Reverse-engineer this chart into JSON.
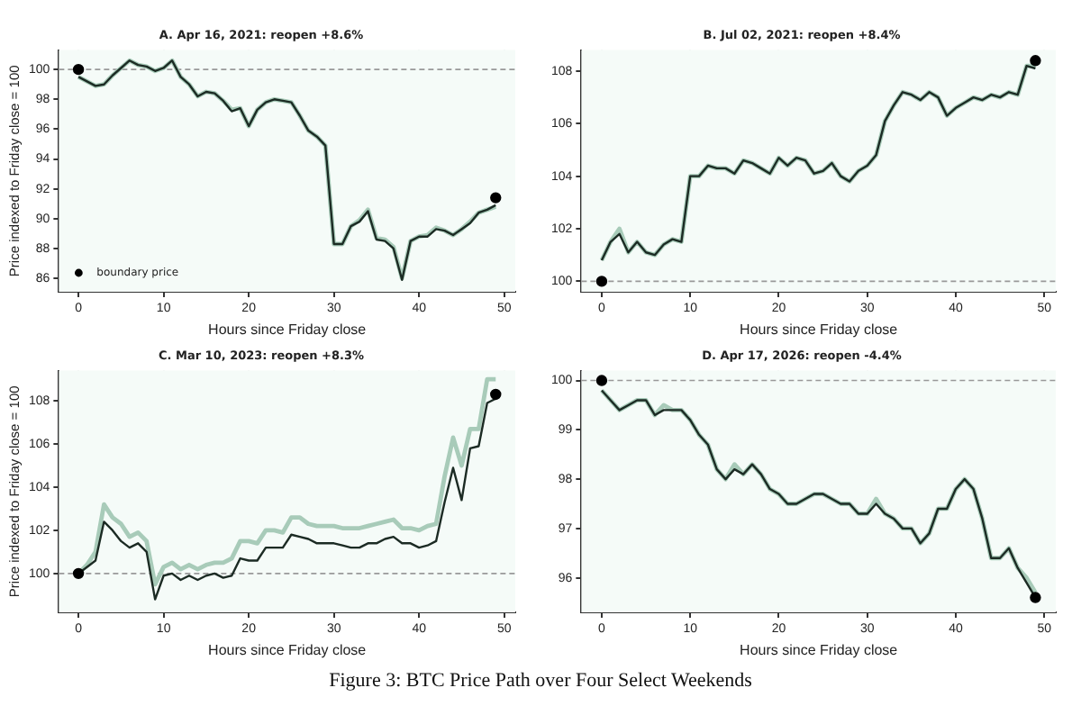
{
  "chart_data": [
    {
      "type": "line",
      "title": "A. Apr 16, 2021: reopen +8.6%",
      "xlabel": "Hours since Friday close",
      "ylabel": "Price indexed to Friday close = 100",
      "x": [
        0,
        1,
        2,
        3,
        4,
        5,
        6,
        7,
        8,
        9,
        10,
        11,
        12,
        13,
        14,
        15,
        16,
        17,
        18,
        19,
        20,
        21,
        22,
        23,
        24,
        25,
        26,
        27,
        28,
        29,
        30,
        31,
        32,
        33,
        34,
        35,
        36,
        37,
        38,
        39,
        40,
        41,
        42,
        43,
        44,
        45,
        46,
        47,
        48,
        49
      ],
      "series": [
        {
          "color": "#a8cbb9",
          "values": [
            99.5,
            99.2,
            98.9,
            99.0,
            99.6,
            100.1,
            100.6,
            100.3,
            100.2,
            99.9,
            100.1,
            100.6,
            99.5,
            99.0,
            98.2,
            98.5,
            98.4,
            97.9,
            97.3,
            97.4,
            96.2,
            97.3,
            97.8,
            98.0,
            97.9,
            97.8,
            96.9,
            95.9,
            95.5,
            94.9,
            88.3,
            88.3,
            89.5,
            89.9,
            90.6,
            88.7,
            88.6,
            88.1,
            86.0,
            88.5,
            88.8,
            88.9,
            89.4,
            89.2,
            88.9,
            89.3,
            89.8,
            90.4,
            90.6,
            90.8
          ]
        },
        {
          "color": "#1c2b24",
          "values": [
            99.5,
            99.2,
            98.9,
            99.0,
            99.6,
            100.1,
            100.6,
            100.3,
            100.2,
            99.9,
            100.1,
            100.6,
            99.5,
            99.0,
            98.2,
            98.5,
            98.4,
            97.9,
            97.2,
            97.4,
            96.2,
            97.3,
            97.8,
            98.0,
            97.9,
            97.8,
            96.9,
            95.9,
            95.5,
            94.9,
            88.3,
            88.3,
            89.5,
            89.8,
            90.5,
            88.6,
            88.5,
            88.0,
            85.9,
            88.5,
            88.8,
            88.8,
            89.3,
            89.2,
            88.9,
            89.3,
            89.7,
            90.4,
            90.6,
            90.9
          ]
        },
        {
          "type": "scatter",
          "name": "boundary price",
          "color": "#000000",
          "marker": "circle",
          "values": [
            100,
            null,
            null,
            null,
            null,
            null,
            null,
            null,
            null,
            null,
            null,
            null,
            null,
            null,
            null,
            null,
            null,
            null,
            null,
            null,
            null,
            null,
            null,
            null,
            null,
            null,
            null,
            null,
            null,
            null,
            null,
            null,
            null,
            null,
            null,
            null,
            null,
            null,
            null,
            null,
            null,
            null,
            null,
            null,
            null,
            null,
            null,
            null,
            null,
            91.4
          ]
        }
      ],
      "ref_lines": [
        {
          "axis": "y",
          "value": 100,
          "color": "#999999",
          "line_style": "dashed"
        }
      ],
      "xlim": [
        -2.3,
        51.3
      ],
      "xticks": [
        0,
        10,
        20,
        30,
        40,
        50
      ],
      "ylim": [
        85.1,
        101.3
      ],
      "yticks": [
        86,
        88,
        90,
        92,
        94,
        96,
        98,
        100
      ],
      "grid": true,
      "legend": "bottom left",
      "marker": "none",
      "line_style": "solid"
    },
    {
      "type": "line",
      "title": "B. Jul 02, 2021: reopen +8.4%",
      "xlabel": "Hours since Friday close",
      "x": [
        0,
        1,
        2,
        3,
        4,
        5,
        6,
        7,
        8,
        9,
        10,
        11,
        12,
        13,
        14,
        15,
        16,
        17,
        18,
        19,
        20,
        21,
        22,
        23,
        24,
        25,
        26,
        27,
        28,
        29,
        30,
        31,
        32,
        33,
        34,
        35,
        36,
        37,
        38,
        39,
        40,
        41,
        42,
        43,
        44,
        45,
        46,
        47,
        48,
        49
      ],
      "series": [
        {
          "color": "#a8cbb9",
          "values": [
            100.8,
            101.5,
            102.0,
            101.1,
            101.5,
            101.1,
            101.0,
            101.4,
            101.6,
            101.5,
            104.0,
            104.0,
            104.4,
            104.3,
            104.3,
            104.1,
            104.6,
            104.5,
            104.3,
            104.1,
            104.7,
            104.4,
            104.7,
            104.6,
            104.1,
            104.2,
            104.5,
            104.0,
            103.8,
            104.2,
            104.4,
            104.8,
            106.1,
            106.7,
            107.2,
            107.1,
            106.9,
            107.2,
            107.0,
            106.3,
            106.6,
            106.8,
            107.0,
            106.9,
            107.1,
            107.0,
            107.2,
            107.1,
            108.2,
            108.2
          ]
        },
        {
          "color": "#1c2b24",
          "values": [
            100.8,
            101.5,
            101.8,
            101.1,
            101.5,
            101.1,
            101.0,
            101.4,
            101.6,
            101.5,
            104.0,
            104.0,
            104.4,
            104.3,
            104.3,
            104.1,
            104.6,
            104.5,
            104.3,
            104.1,
            104.7,
            104.4,
            104.7,
            104.6,
            104.1,
            104.2,
            104.5,
            104.0,
            103.8,
            104.2,
            104.4,
            104.8,
            106.1,
            106.7,
            107.2,
            107.1,
            106.9,
            107.2,
            107.0,
            106.3,
            106.6,
            106.8,
            107.0,
            106.9,
            107.1,
            107.0,
            107.2,
            107.1,
            108.2,
            108.1
          ]
        },
        {
          "type": "scatter",
          "color": "#000000",
          "marker": "circle",
          "values": [
            100,
            null,
            null,
            null,
            null,
            null,
            null,
            null,
            null,
            null,
            null,
            null,
            null,
            null,
            null,
            null,
            null,
            null,
            null,
            null,
            null,
            null,
            null,
            null,
            null,
            null,
            null,
            null,
            null,
            null,
            null,
            null,
            null,
            null,
            null,
            null,
            null,
            null,
            null,
            null,
            null,
            null,
            null,
            null,
            null,
            null,
            null,
            null,
            null,
            108.4
          ]
        }
      ],
      "ref_lines": [
        {
          "axis": "y",
          "value": 100,
          "color": "#999999",
          "line_style": "dashed"
        }
      ],
      "xlim": [
        -2.3,
        51.3
      ],
      "xticks": [
        0,
        10,
        20,
        30,
        40,
        50
      ],
      "ylim": [
        99.6,
        108.8
      ],
      "yticks": [
        100,
        102,
        104,
        106,
        108
      ],
      "grid": true,
      "marker": "none",
      "line_style": "solid"
    },
    {
      "type": "line",
      "title": "C. Mar 10, 2023: reopen +8.3%",
      "xlabel": "Hours since Friday close",
      "ylabel": "Price indexed to Friday close = 100",
      "x": [
        0,
        1,
        2,
        3,
        4,
        5,
        6,
        7,
        8,
        9,
        10,
        11,
        12,
        13,
        14,
        15,
        16,
        17,
        18,
        19,
        20,
        21,
        22,
        23,
        24,
        25,
        26,
        27,
        28,
        29,
        30,
        31,
        32,
        33,
        34,
        35,
        36,
        37,
        38,
        39,
        40,
        41,
        42,
        43,
        44,
        45,
        46,
        47,
        48,
        49
      ],
      "series": [
        {
          "color": "#a8cbb9",
          "values": [
            100.0,
            100.4,
            101.0,
            103.2,
            102.6,
            102.3,
            101.7,
            101.9,
            101.5,
            99.5,
            100.3,
            100.5,
            100.2,
            100.4,
            100.2,
            100.4,
            100.5,
            100.5,
            100.7,
            101.5,
            101.5,
            101.4,
            102.0,
            102.0,
            101.9,
            102.6,
            102.6,
            102.3,
            102.2,
            102.2,
            102.2,
            102.1,
            102.1,
            102.1,
            102.2,
            102.3,
            102.4,
            102.5,
            102.1,
            102.1,
            102.0,
            102.2,
            102.3,
            104.5,
            106.3,
            105.0,
            106.7,
            106.7,
            109.0,
            109.0
          ]
        },
        {
          "color": "#1c2b24",
          "values": [
            100.0,
            100.3,
            100.6,
            102.4,
            102.0,
            101.5,
            101.2,
            101.4,
            101.0,
            98.8,
            99.9,
            100.0,
            99.7,
            99.9,
            99.7,
            99.9,
            100.0,
            99.8,
            99.9,
            100.7,
            100.6,
            100.6,
            101.2,
            101.2,
            101.2,
            101.8,
            101.7,
            101.6,
            101.4,
            101.4,
            101.4,
            101.3,
            101.2,
            101.2,
            101.4,
            101.4,
            101.6,
            101.7,
            101.4,
            101.4,
            101.2,
            101.3,
            101.5,
            103.3,
            104.9,
            103.4,
            105.8,
            105.9,
            107.9,
            108.1
          ]
        },
        {
          "type": "scatter",
          "color": "#000000",
          "marker": "circle",
          "values": [
            100,
            null,
            null,
            null,
            null,
            null,
            null,
            null,
            null,
            null,
            null,
            null,
            null,
            null,
            null,
            null,
            null,
            null,
            null,
            null,
            null,
            null,
            null,
            null,
            null,
            null,
            null,
            null,
            null,
            null,
            null,
            null,
            null,
            null,
            null,
            null,
            null,
            null,
            null,
            null,
            null,
            null,
            null,
            null,
            null,
            null,
            null,
            null,
            null,
            108.3
          ]
        }
      ],
      "ref_lines": [
        {
          "axis": "y",
          "value": 100,
          "color": "#999999",
          "line_style": "dashed"
        }
      ],
      "xlim": [
        -2.3,
        51.3
      ],
      "xticks": [
        0,
        10,
        20,
        30,
        40,
        50
      ],
      "ylim": [
        98.2,
        109.4
      ],
      "yticks": [
        100,
        102,
        104,
        106,
        108
      ],
      "grid": true,
      "marker": "none",
      "line_style": "solid"
    },
    {
      "type": "line",
      "title": "D. Apr 17, 2026: reopen -4.4%",
      "xlabel": "Hours since Friday close",
      "annotations": [
        "Figure 3: BTC Price Path over Four Select Weekends"
      ],
      "x": [
        0,
        1,
        2,
        3,
        4,
        5,
        6,
        7,
        8,
        9,
        10,
        11,
        12,
        13,
        14,
        15,
        16,
        17,
        18,
        19,
        20,
        21,
        22,
        23,
        24,
        25,
        26,
        27,
        28,
        29,
        30,
        31,
        32,
        33,
        34,
        35,
        36,
        37,
        38,
        39,
        40,
        41,
        42,
        43,
        44,
        45,
        46,
        47,
        48,
        49
      ],
      "series": [
        {
          "color": "#a8cbb9",
          "values": [
            99.8,
            99.6,
            99.4,
            99.5,
            99.6,
            99.6,
            99.3,
            99.5,
            99.4,
            99.4,
            99.2,
            98.9,
            98.7,
            98.2,
            98.0,
            98.3,
            98.1,
            98.3,
            98.1,
            97.8,
            97.7,
            97.5,
            97.5,
            97.6,
            97.7,
            97.7,
            97.6,
            97.5,
            97.5,
            97.3,
            97.3,
            97.6,
            97.3,
            97.2,
            97.0,
            97.0,
            96.7,
            96.9,
            97.4,
            97.4,
            97.8,
            98.0,
            97.8,
            97.2,
            96.4,
            96.4,
            96.6,
            96.2,
            96.0,
            95.7
          ]
        },
        {
          "color": "#1c2b24",
          "values": [
            99.8,
            99.6,
            99.4,
            99.5,
            99.6,
            99.6,
            99.3,
            99.4,
            99.4,
            99.4,
            99.2,
            98.9,
            98.7,
            98.2,
            98.0,
            98.2,
            98.1,
            98.3,
            98.1,
            97.8,
            97.7,
            97.5,
            97.5,
            97.6,
            97.7,
            97.7,
            97.6,
            97.5,
            97.5,
            97.3,
            97.3,
            97.5,
            97.3,
            97.2,
            97.0,
            97.0,
            96.7,
            96.9,
            97.4,
            97.4,
            97.8,
            98.0,
            97.8,
            97.2,
            96.4,
            96.4,
            96.6,
            96.2,
            95.9,
            95.6
          ]
        },
        {
          "type": "scatter",
          "color": "#000000",
          "marker": "circle",
          "values": [
            100,
            null,
            null,
            null,
            null,
            null,
            null,
            null,
            null,
            null,
            null,
            null,
            null,
            null,
            null,
            null,
            null,
            null,
            null,
            null,
            null,
            null,
            null,
            null,
            null,
            null,
            null,
            null,
            null,
            null,
            null,
            null,
            null,
            null,
            null,
            null,
            null,
            null,
            null,
            null,
            null,
            null,
            null,
            null,
            null,
            null,
            null,
            null,
            null,
            95.6
          ]
        }
      ],
      "ref_lines": [
        {
          "axis": "y",
          "value": 100,
          "color": "#999999",
          "line_style": "dashed"
        }
      ],
      "xlim": [
        -2.3,
        51.3
      ],
      "xticks": [
        0,
        10,
        20,
        30,
        40,
        50
      ],
      "ylim": [
        95.3,
        100.2
      ],
      "yticks": [
        96,
        97,
        98,
        99,
        100
      ],
      "grid": true,
      "marker": "none",
      "line_style": "solid"
    }
  ]
}
